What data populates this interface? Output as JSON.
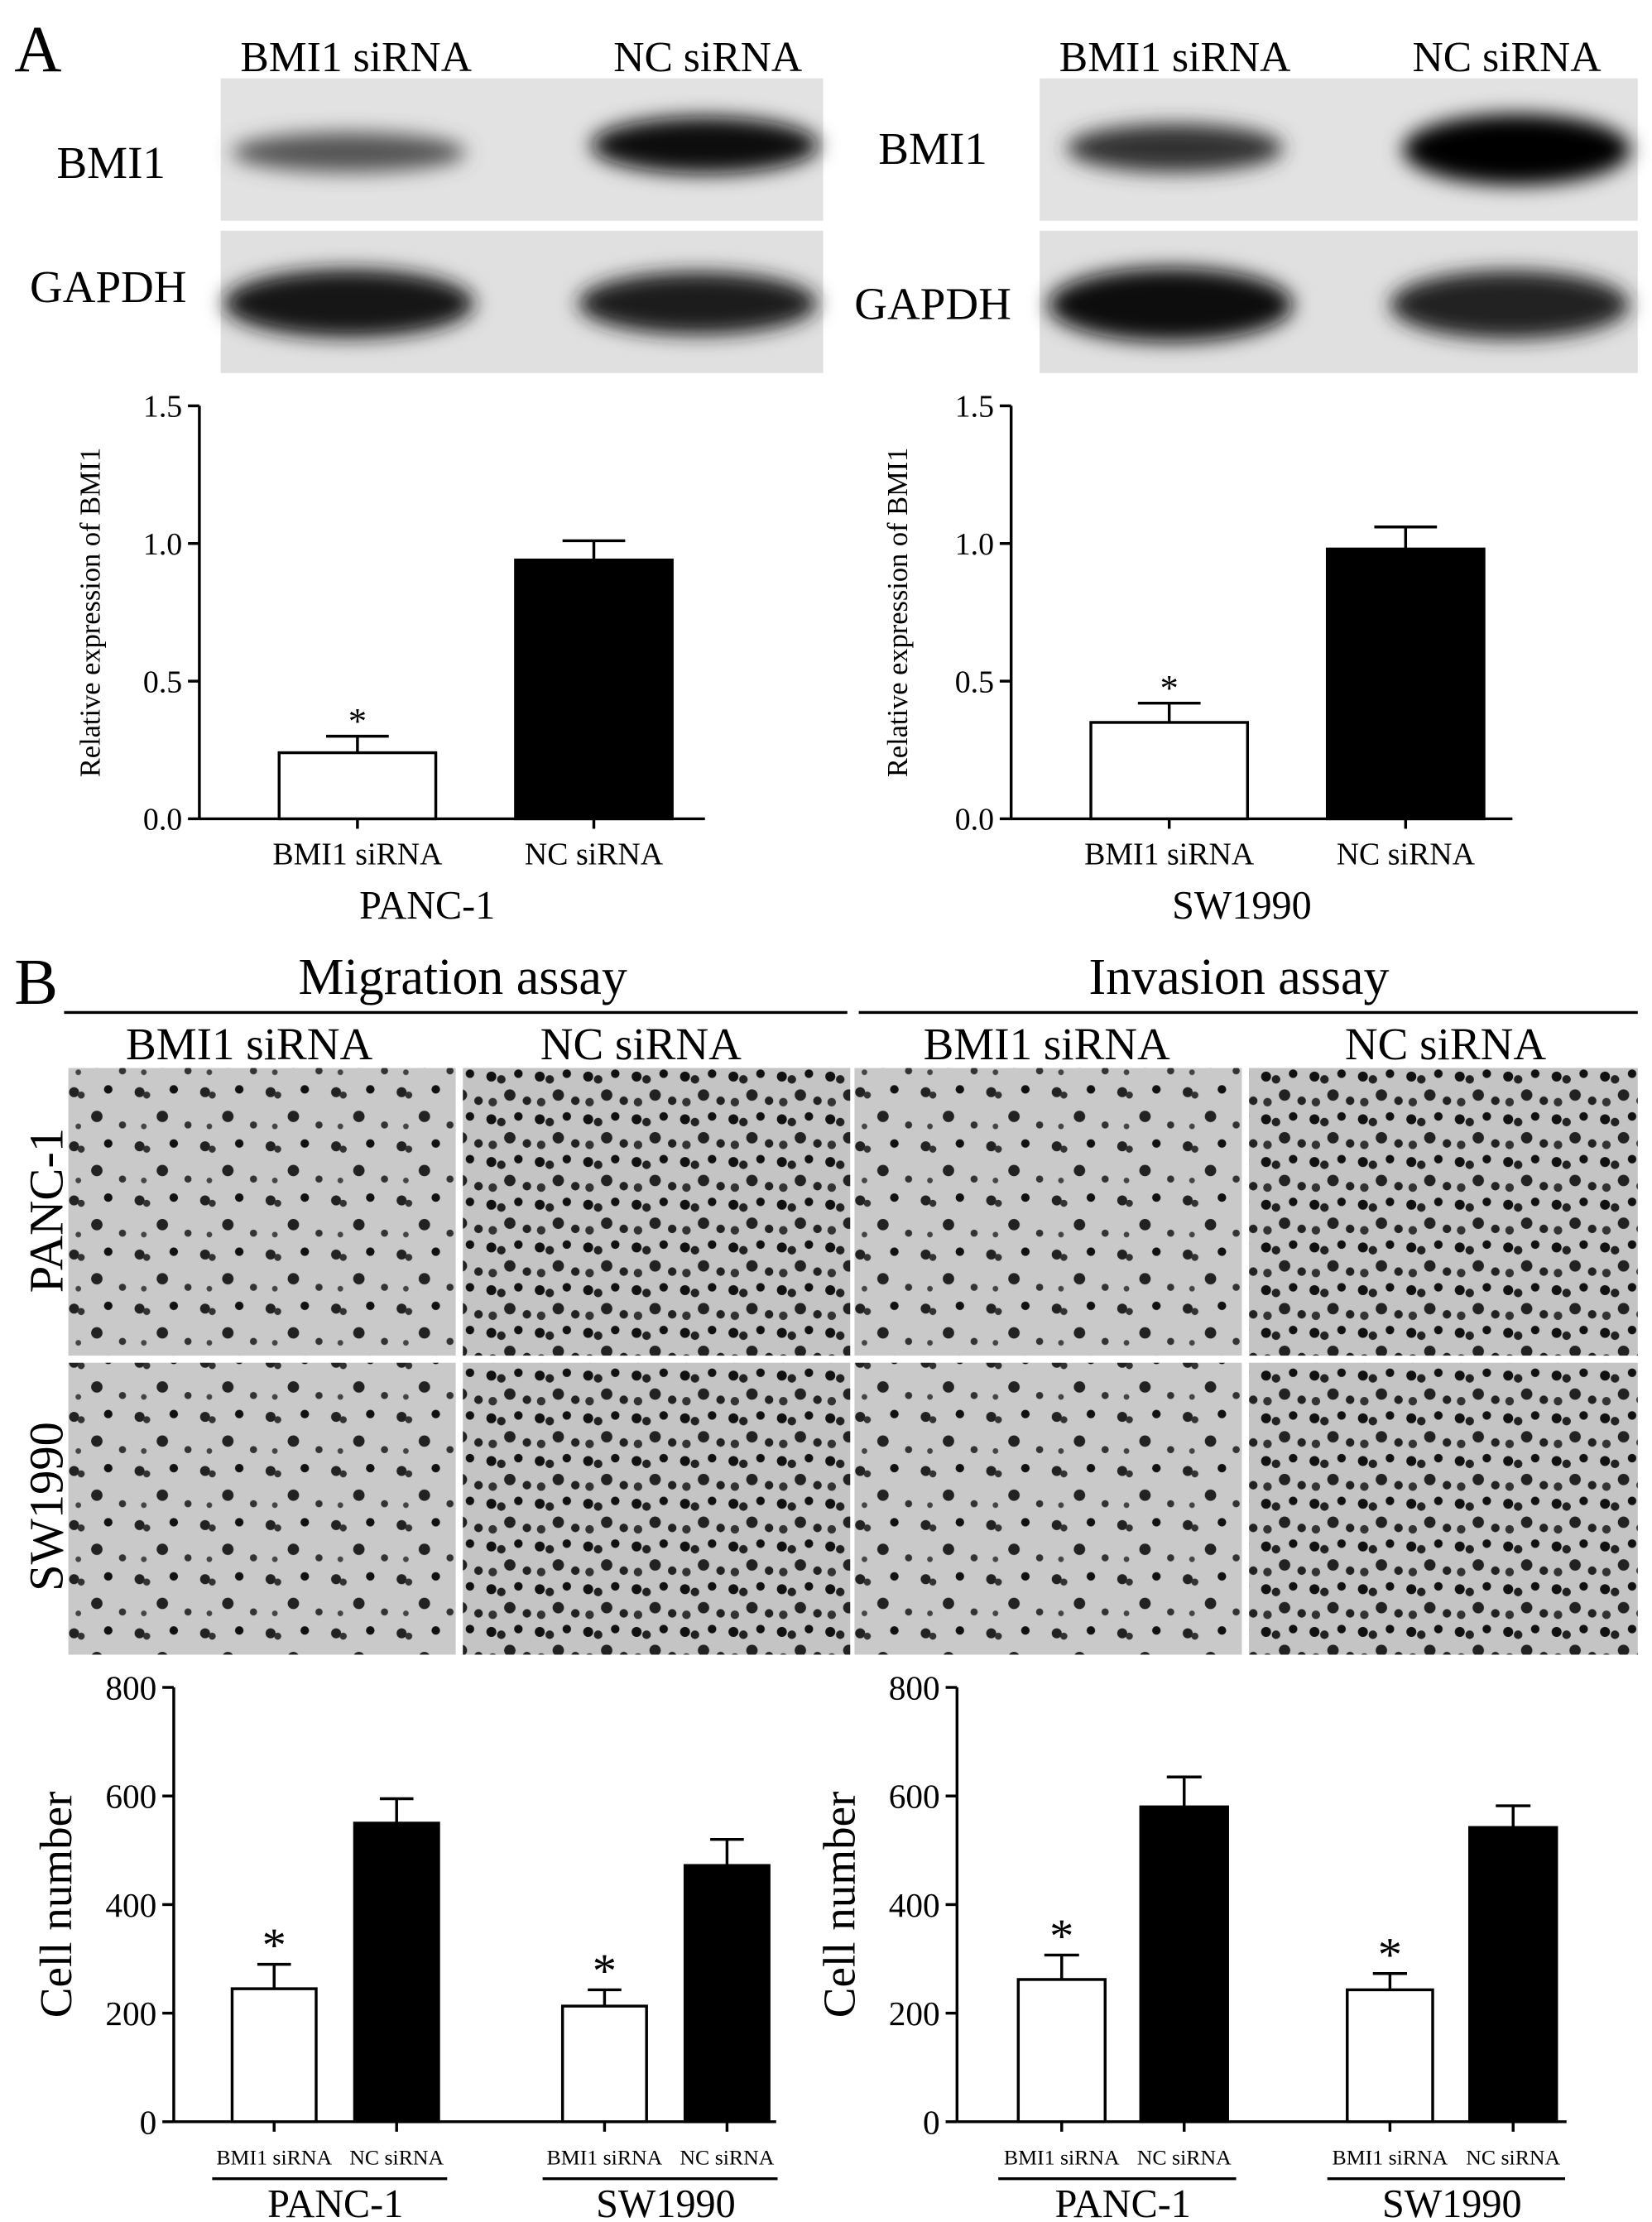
{
  "figure": {
    "panel_a": "A",
    "panel_b": "B",
    "blot_columns": [
      "BMI1 siRNA",
      "NC siRNA"
    ],
    "blot_rows": [
      "BMI1",
      "GAPDH"
    ],
    "assays": [
      "Migration assay",
      "Invasion assay"
    ],
    "image_columns": [
      "BMI1 siRNA",
      "NC siRNA"
    ],
    "image_rows": [
      "PANC-1",
      "SW1990"
    ]
  },
  "chart_data": [
    {
      "type": "bar",
      "ylabel": "Relative expression of BMI1",
      "xlabel": "PANC-1",
      "categories": [
        "BMI1 siRNA",
        "NC siRNA"
      ],
      "values": [
        0.24,
        0.94
      ],
      "errors": [
        0.06,
        0.07
      ],
      "colors": [
        "#ffffff",
        "#000000"
      ],
      "annotation": "*",
      "ylim": [
        0,
        1.5
      ],
      "yticks": [
        {
          "value": 0,
          "label": "0.0"
        },
        0.5,
        {
          "value": 1,
          "label": "1.0"
        },
        1.5
      ]
    },
    {
      "type": "bar",
      "ylabel": "Relative expression of BMI1",
      "xlabel": "SW1990",
      "categories": [
        "BMI1 siRNA",
        "NC siRNA"
      ],
      "values": [
        0.35,
        0.98
      ],
      "errors": [
        0.07,
        0.08
      ],
      "colors": [
        "#ffffff",
        "#000000"
      ],
      "annotation": "*",
      "ylim": [
        0,
        1.5
      ],
      "yticks": [
        {
          "value": 0,
          "label": "0.0"
        },
        0.5,
        {
          "value": 1,
          "label": "1.0"
        },
        1.5
      ]
    },
    {
      "type": "grouped_bar",
      "ylabel": "Cell number",
      "categories": [
        "PANC-1",
        "SW1990"
      ],
      "annotation": "*",
      "series": [
        {
          "name": "BMI1 siRNA",
          "color": "#ffffff",
          "values": [
            245,
            213
          ],
          "errors": [
            45,
            30
          ]
        },
        {
          "name": "NC siRNA",
          "color": "#000000",
          "values": [
            550,
            472
          ],
          "errors": [
            45,
            48
          ]
        }
      ],
      "ylim": [
        0,
        800
      ],
      "yticks": [
        0,
        200,
        400,
        600,
        800
      ]
    },
    {
      "type": "grouped_bar",
      "ylabel": "Cell number",
      "categories": [
        "PANC-1",
        "SW1990"
      ],
      "annotation": "*",
      "series": [
        {
          "name": "BMI1 siRNA",
          "color": "#ffffff",
          "values": [
            262,
            243
          ],
          "errors": [
            45,
            30
          ]
        },
        {
          "name": "NC siRNA",
          "color": "#000000",
          "values": [
            580,
            542
          ],
          "errors": [
            55,
            40
          ]
        }
      ],
      "ylim": [
        0,
        800
      ],
      "yticks": [
        0,
        200,
        400,
        600,
        800
      ]
    }
  ]
}
